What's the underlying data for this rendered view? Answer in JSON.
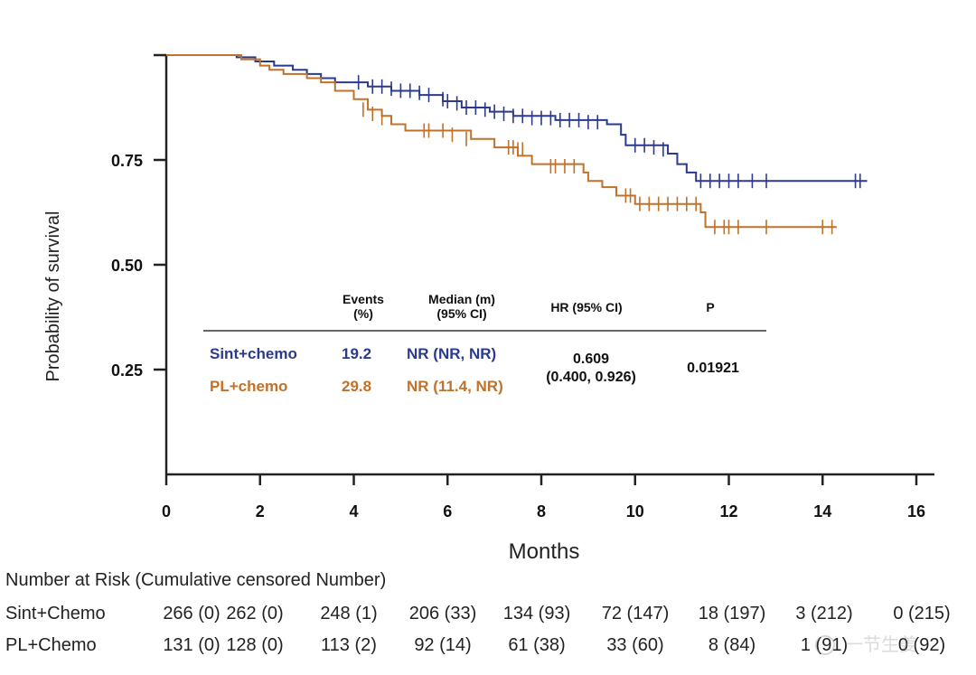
{
  "chart_data": {
    "type": "line",
    "subtype": "kaplan-meier",
    "xlabel": "Months",
    "ylabel": "Probability of survival",
    "xlim": [
      0,
      16
    ],
    "ylim": [
      0,
      1
    ],
    "xticks": [
      "0",
      "2",
      "4",
      "6",
      "8",
      "10",
      "12",
      "14",
      "16"
    ],
    "yticks": [
      {
        "v": 0.75,
        "label": "0.75"
      },
      {
        "v": 0.5,
        "label": "0.50"
      },
      {
        "v": 0.25,
        "label": "0.25"
      }
    ],
    "series": [
      {
        "name": "Sint+chemo",
        "color": "#2b3a8c",
        "steps": [
          [
            0,
            1
          ],
          [
            1.5,
            0.995
          ],
          [
            1.9,
            0.985
          ],
          [
            2.3,
            0.975
          ],
          [
            2.7,
            0.965
          ],
          [
            3.0,
            0.955
          ],
          [
            3.3,
            0.945
          ],
          [
            3.6,
            0.935
          ],
          [
            4.3,
            0.925
          ],
          [
            4.8,
            0.915
          ],
          [
            5.4,
            0.905
          ],
          [
            5.9,
            0.89
          ],
          [
            6.3,
            0.875
          ],
          [
            6.9,
            0.865
          ],
          [
            7.4,
            0.855
          ],
          [
            8.3,
            0.845
          ],
          [
            9.4,
            0.835
          ],
          [
            9.7,
            0.81
          ],
          [
            9.8,
            0.785
          ],
          [
            10.7,
            0.765
          ],
          [
            10.9,
            0.74
          ],
          [
            11.1,
            0.72
          ],
          [
            11.3,
            0.7
          ],
          [
            14.95,
            0.7
          ]
        ],
        "censored": [
          [
            4.1,
            0.935
          ],
          [
            4.4,
            0.925
          ],
          [
            4.6,
            0.925
          ],
          [
            4.8,
            0.92
          ],
          [
            5.0,
            0.915
          ],
          [
            5.2,
            0.915
          ],
          [
            5.4,
            0.91
          ],
          [
            5.6,
            0.905
          ],
          [
            5.9,
            0.895
          ],
          [
            6.0,
            0.89
          ],
          [
            6.2,
            0.885
          ],
          [
            6.4,
            0.875
          ],
          [
            6.6,
            0.875
          ],
          [
            6.8,
            0.87
          ],
          [
            7.0,
            0.865
          ],
          [
            7.2,
            0.86
          ],
          [
            7.4,
            0.855
          ],
          [
            7.6,
            0.855
          ],
          [
            7.8,
            0.85
          ],
          [
            8.0,
            0.85
          ],
          [
            8.2,
            0.85
          ],
          [
            8.4,
            0.845
          ],
          [
            8.6,
            0.845
          ],
          [
            8.8,
            0.845
          ],
          [
            9.0,
            0.84
          ],
          [
            9.2,
            0.84
          ],
          [
            10.0,
            0.785
          ],
          [
            10.2,
            0.785
          ],
          [
            10.4,
            0.78
          ],
          [
            10.6,
            0.775
          ],
          [
            11.4,
            0.7
          ],
          [
            11.6,
            0.7
          ],
          [
            11.8,
            0.7
          ],
          [
            12.0,
            0.7
          ],
          [
            12.2,
            0.7
          ],
          [
            12.5,
            0.7
          ],
          [
            12.8,
            0.7
          ],
          [
            14.7,
            0.7
          ],
          [
            14.8,
            0.7
          ]
        ]
      },
      {
        "name": "PL+chemo",
        "color": "#c0712a",
        "steps": [
          [
            0,
            1
          ],
          [
            1.6,
            0.99
          ],
          [
            2.0,
            0.975
          ],
          [
            2.2,
            0.965
          ],
          [
            2.5,
            0.955
          ],
          [
            3.0,
            0.945
          ],
          [
            3.3,
            0.935
          ],
          [
            3.6,
            0.915
          ],
          [
            4.0,
            0.895
          ],
          [
            4.3,
            0.87
          ],
          [
            4.6,
            0.855
          ],
          [
            4.8,
            0.835
          ],
          [
            5.1,
            0.82
          ],
          [
            5.4,
            0.82
          ],
          [
            6.5,
            0.8
          ],
          [
            7.0,
            0.78
          ],
          [
            7.5,
            0.76
          ],
          [
            7.8,
            0.74
          ],
          [
            8.9,
            0.72
          ],
          [
            9.0,
            0.7
          ],
          [
            9.3,
            0.685
          ],
          [
            9.6,
            0.665
          ],
          [
            10.0,
            0.645
          ],
          [
            11.4,
            0.625
          ],
          [
            11.5,
            0.59
          ],
          [
            14.3,
            0.59
          ]
        ],
        "censored": [
          [
            4.2,
            0.87
          ],
          [
            4.4,
            0.86
          ],
          [
            4.6,
            0.85
          ],
          [
            5.5,
            0.82
          ],
          [
            5.6,
            0.82
          ],
          [
            5.9,
            0.82
          ],
          [
            6.1,
            0.81
          ],
          [
            6.4,
            0.8
          ],
          [
            7.3,
            0.78
          ],
          [
            7.4,
            0.78
          ],
          [
            7.5,
            0.775
          ],
          [
            7.6,
            0.775
          ],
          [
            8.2,
            0.735
          ],
          [
            8.3,
            0.735
          ],
          [
            8.5,
            0.735
          ],
          [
            8.7,
            0.735
          ],
          [
            9.8,
            0.665
          ],
          [
            9.9,
            0.665
          ],
          [
            10.1,
            0.645
          ],
          [
            10.3,
            0.645
          ],
          [
            10.5,
            0.645
          ],
          [
            10.7,
            0.645
          ],
          [
            10.9,
            0.645
          ],
          [
            11.1,
            0.645
          ],
          [
            11.3,
            0.645
          ],
          [
            11.7,
            0.59
          ],
          [
            11.9,
            0.59
          ],
          [
            12.0,
            0.59
          ],
          [
            12.2,
            0.59
          ],
          [
            12.8,
            0.59
          ],
          [
            14.0,
            0.59
          ],
          [
            14.2,
            0.59
          ]
        ]
      }
    ],
    "summary_table": {
      "headers": {
        "events": "Events",
        "events_unit": "(%)",
        "median": "Median (m)",
        "median_ci": "(95% CI)",
        "hr": "HR (95% CI)",
        "p": "P"
      },
      "rows": [
        {
          "arm": "Sint+chemo",
          "events": "19.2",
          "median": "NR (NR, NR)"
        },
        {
          "arm": "PL+chemo",
          "events": "29.8",
          "median": "NR (11.4, NR)"
        }
      ],
      "hr": "0.609",
      "hr_ci": "(0.400, 0.926)",
      "p": "0.01921"
    },
    "risk_table": {
      "title": "Number at Risk (Cumulative censored Number)",
      "rows": [
        {
          "label": "Sint+Chemo",
          "values": [
            "266 (0)",
            "262 (0)",
            "248 (1)",
            "206 (33)",
            "134 (93)",
            "72 (147)",
            "18 (197)",
            "3 (212)",
            "0 (215)"
          ]
        },
        {
          "label": "PL+Chemo",
          "values": [
            "131 (0)",
            "128 (0)",
            "113 (2)",
            "92 (14)",
            "61 (38)",
            "33 (60)",
            "8 (84)",
            "1 (91)",
            "0 (92)"
          ]
        }
      ]
    },
    "watermark": "一节生姜"
  }
}
